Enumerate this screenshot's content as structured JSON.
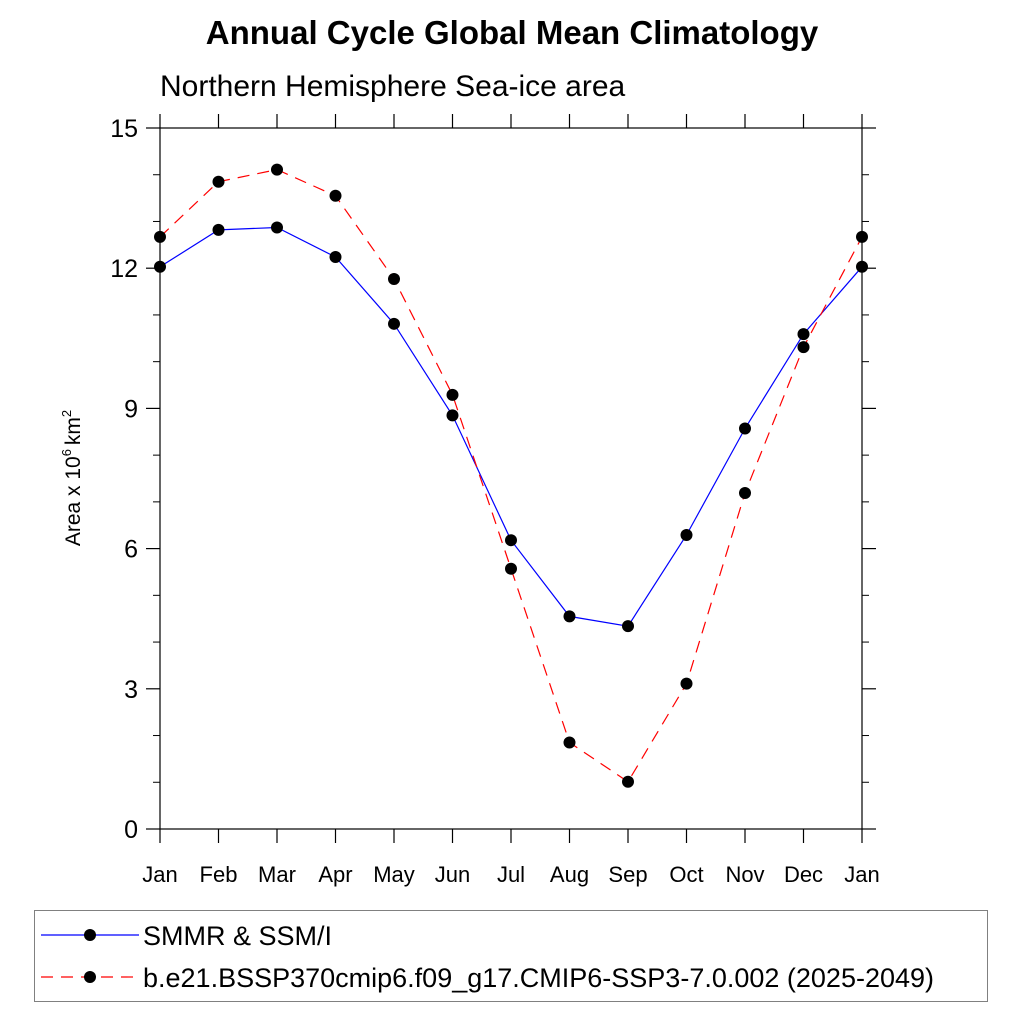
{
  "chart_data": {
    "type": "line",
    "title": "Annual Cycle Global Mean Climatology",
    "subtitle": "Northern Hemisphere Sea-ice area",
    "ylabel": "Area x 10",
    "ylabel_sup": "6",
    "ylabel_unit": "km",
    "ylabel_unit_sup": "2",
    "xlabel": "",
    "categories": [
      "Jan",
      "Feb",
      "Mar",
      "Apr",
      "May",
      "Jun",
      "Jul",
      "Aug",
      "Sep",
      "Oct",
      "Nov",
      "Dec",
      "Jan"
    ],
    "ylim": [
      0,
      15
    ],
    "yticks": [
      "0",
      "3",
      "6",
      "9",
      "12",
      "15"
    ],
    "grid": false,
    "legend_placement": "bottom",
    "series": [
      {
        "name": "SMMR & SSM/I",
        "color": "#0000ff",
        "dash": "solid",
        "values": [
          12.03,
          12.82,
          12.87,
          12.24,
          10.81,
          8.85,
          6.18,
          4.55,
          4.34,
          6.29,
          8.57,
          10.59,
          12.03
        ]
      },
      {
        "name": "b.e21.BSSP370cmip6.f09_g17.CMIP6-SSP3-7.0.002 (2025-2049)",
        "color": "#ff0000",
        "dash": "dashed",
        "values": [
          12.67,
          13.85,
          14.11,
          13.55,
          11.77,
          9.29,
          5.57,
          1.85,
          1.01,
          3.11,
          7.19,
          10.31,
          12.67
        ]
      }
    ]
  }
}
